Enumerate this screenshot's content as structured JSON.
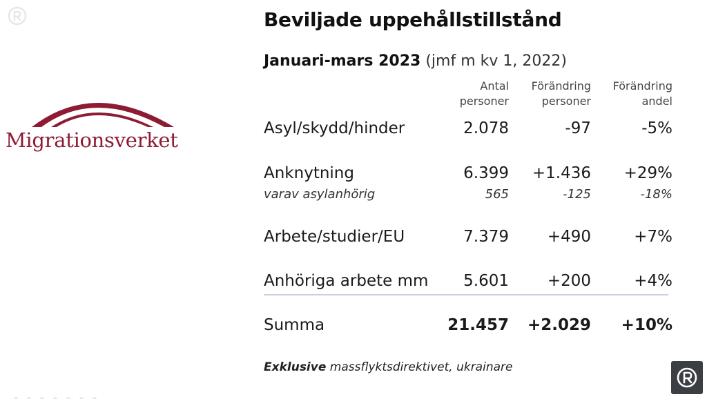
{
  "slide": {
    "title": "Beviljade uppehållstillstånd",
    "subtitle": {
      "period": "Januari-mars 2023",
      "note": "(jmf m kv 1, 2022)"
    },
    "logo": {
      "name": "Migrationsverket",
      "color": "#8e1b34"
    },
    "columns": [
      "Antal\npersoner",
      "Förändring\npersoner",
      "Förändring\nandel"
    ],
    "rows": [
      {
        "label": "Asyl/skydd/hinder",
        "antal": "2.078",
        "change": "-97",
        "share": "-5%"
      },
      {
        "label": "Anknytning",
        "antal": "6.399",
        "change": "+1.436",
        "share": "+29%"
      },
      {
        "label": "varav asylanhörig",
        "antal": "565",
        "change": "-125",
        "share": "-18%"
      },
      {
        "label": "Arbete/studier/EU",
        "antal": "7.379",
        "change": "+490",
        "share": "+7%"
      },
      {
        "label": "Anhöriga arbete mm",
        "antal": "5.601",
        "change": "+200",
        "share": "+4%"
      }
    ],
    "total": {
      "label": "Summa",
      "antal": "21.457",
      "change": "+2.029",
      "share": "+10%"
    },
    "footnote": {
      "bold": "Exklusive",
      "rest": " massflyktsdirektivet, ukrainare"
    }
  },
  "icons": {
    "corner": "play-logo-icon",
    "badge": "play-logo-icon",
    "dots": "progress-dots-icon"
  },
  "colors": {
    "brand": "#8e1b34",
    "divider": "#c9cfe0",
    "badge_bg": "#3b3f44"
  }
}
